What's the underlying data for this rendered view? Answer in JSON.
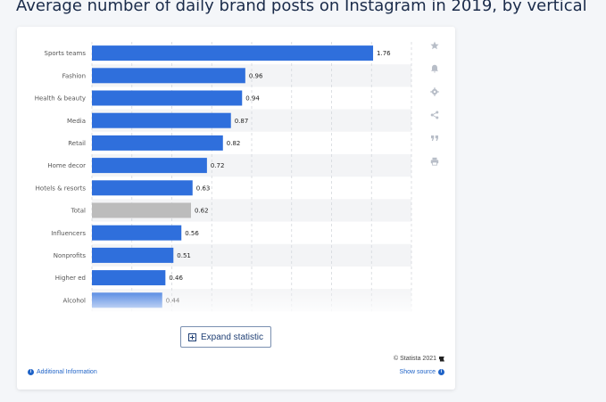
{
  "page": {
    "title": "Average number of daily brand posts on Instagram in 2019, by vertical"
  },
  "toolbar": {
    "icons": [
      "star-icon",
      "bell-icon",
      "gear-icon",
      "share-icon",
      "quote-icon",
      "print-icon"
    ]
  },
  "expand_label": "Expand statistic",
  "footer": {
    "copyright": "© Statista 2021",
    "additional_info": "Additional Information",
    "show_source": "Show source"
  },
  "colors": {
    "bar": "#2f6fdc",
    "highlight": "#bcbcbc",
    "link": "#1f63c7"
  },
  "chart_data": {
    "type": "bar",
    "orientation": "horizontal",
    "categories": [
      "Sports teams",
      "Fashion",
      "Health & beauty",
      "Media",
      "Retail",
      "Home decor",
      "Hotels & resorts",
      "Total",
      "Influencers",
      "Nonprofits",
      "Higher ed",
      "Alcohol"
    ],
    "values": [
      1.76,
      0.96,
      0.94,
      0.87,
      0.82,
      0.72,
      0.63,
      0.62,
      0.56,
      0.51,
      0.46,
      0.44
    ],
    "highlight_category": "Total",
    "xlim": [
      0,
      2
    ],
    "grid": true
  }
}
